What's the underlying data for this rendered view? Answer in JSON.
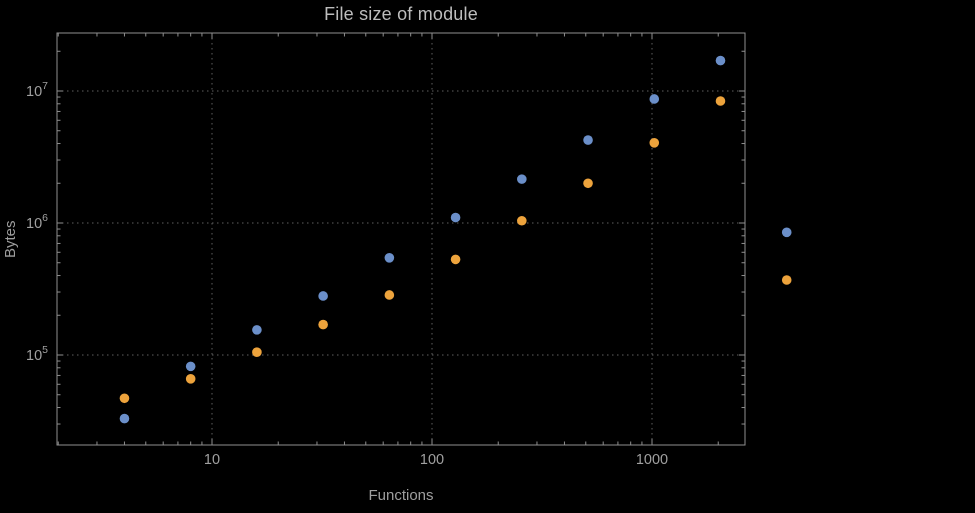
{
  "chart_data": {
    "type": "scatter",
    "title": "File size of module",
    "xlabel": "Functions",
    "ylabel": "Bytes",
    "x_scale": "log",
    "y_scale": "log",
    "grid": "dotted",
    "legend_position": "none",
    "x_range": [
      2,
      2650
    ],
    "y_range": [
      21000,
      27500000
    ],
    "x": [
      4,
      8,
      16,
      32,
      64,
      128,
      256,
      512,
      1024,
      2048,
      4096
    ],
    "series": [
      {
        "name": "series-blue",
        "color": "#6b8fc9",
        "values": [
          33000,
          82000,
          155000,
          280000,
          545000,
          1100000,
          2150000,
          4250000,
          8700000,
          17000000,
          850000
        ]
      },
      {
        "name": "series-orange",
        "color": "#eda33c",
        "values": [
          47000,
          66000,
          105000,
          170000,
          285000,
          530000,
          1040000,
          2000000,
          4050000,
          8400000,
          370000
        ]
      }
    ],
    "x_ticks": [
      {
        "value": 10,
        "label": "10"
      },
      {
        "value": 100,
        "label": "100"
      },
      {
        "value": 1000,
        "label": "1000"
      }
    ],
    "y_ticks": [
      {
        "value": 100000,
        "base": "10",
        "exp": "5"
      },
      {
        "value": 1000000,
        "base": "10",
        "exp": "6"
      },
      {
        "value": 10000000,
        "base": "10",
        "exp": "7"
      }
    ]
  },
  "colors": {
    "background": "#000000",
    "frame": "#8f8f8f",
    "grid": "#5f5f5f",
    "tick_text": "#a0a0a0",
    "title_text": "#bdbdbd",
    "axis_label_text": "#9e9e9e"
  }
}
